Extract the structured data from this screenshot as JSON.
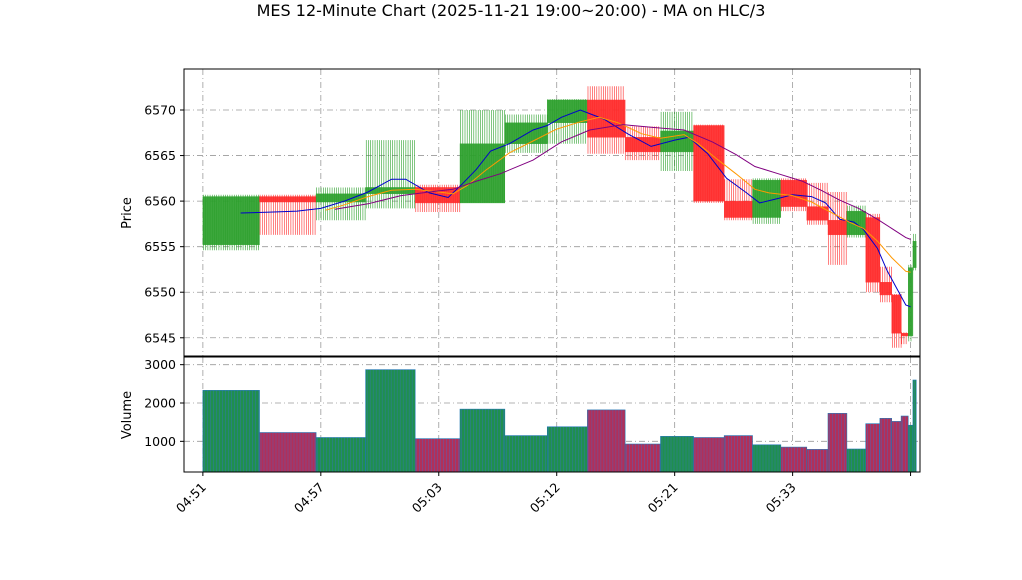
{
  "chart_data": {
    "type": "candlestick",
    "title": "MES 12-Minute Chart (2025-11-21 19:00~20:00) - MA on HLC/3",
    "price_panel": {
      "ylabel": "Price",
      "ylim": [
        6543,
        6574.5
      ],
      "yticks": [
        6545,
        6550,
        6555,
        6560,
        6565,
        6570
      ],
      "grid": true
    },
    "volume_panel": {
      "ylabel": "Volume",
      "ylim": [
        200,
        3200
      ],
      "yticks": [
        1000,
        2000,
        3000
      ],
      "grid": true
    },
    "xlim": [
      -0.4,
      15.2
    ],
    "xticks": [
      {
        "label": "04:51",
        "pos": 0
      },
      {
        "label": "04:57",
        "pos": 2.5
      },
      {
        "label": "05:03",
        "pos": 5
      },
      {
        "label": "05:12",
        "pos": 7.5
      },
      {
        "label": "05:21",
        "pos": 10
      },
      {
        "label": "05:33",
        "pos": 12.5
      },
      {
        "label": "",
        "pos": 15
      }
    ],
    "candles": [
      {
        "x0": 0.0,
        "x1": 1.2,
        "open": 6555.2,
        "high": 6560.7,
        "low": 6554.6,
        "close": 6560.5,
        "volume": 2330
      },
      {
        "x0": 1.2,
        "x1": 2.4,
        "open": 6560.5,
        "high": 6560.7,
        "low": 6556.3,
        "close": 6559.9,
        "volume": 1230
      },
      {
        "x0": 2.4,
        "x1": 3.45,
        "open": 6559.9,
        "high": 6561.5,
        "low": 6557.9,
        "close": 6560.8,
        "volume": 1100
      },
      {
        "x0": 3.45,
        "x1": 4.5,
        "open": 6560.8,
        "high": 6566.7,
        "low": 6559.2,
        "close": 6561.5,
        "volume": 2870
      },
      {
        "x0": 4.5,
        "x1": 5.45,
        "open": 6561.5,
        "high": 6561.8,
        "low": 6558.8,
        "close": 6559.8,
        "volume": 1070
      },
      {
        "x0": 5.45,
        "x1": 6.4,
        "open": 6559.8,
        "high": 6570.0,
        "low": 6559.8,
        "close": 6566.3,
        "volume": 1840
      },
      {
        "x0": 6.4,
        "x1": 7.3,
        "open": 6566.3,
        "high": 6569.5,
        "low": 6565.3,
        "close": 6568.6,
        "volume": 1150
      },
      {
        "x0": 7.3,
        "x1": 8.15,
        "open": 6568.6,
        "high": 6571.2,
        "low": 6566.3,
        "close": 6571.1,
        "volume": 1380
      },
      {
        "x0": 8.15,
        "x1": 8.95,
        "open": 6571.1,
        "high": 6572.6,
        "low": 6565.2,
        "close": 6567.0,
        "volume": 1820
      },
      {
        "x0": 8.95,
        "x1": 9.7,
        "open": 6567.0,
        "high": 6568.2,
        "low": 6564.5,
        "close": 6565.4,
        "volume": 930
      },
      {
        "x0": 9.7,
        "x1": 10.4,
        "open": 6565.4,
        "high": 6569.8,
        "low": 6563.3,
        "close": 6567.7,
        "volume": 1130
      },
      {
        "x0": 10.4,
        "x1": 11.05,
        "open": 6568.3,
        "high": 6568.4,
        "low": 6559.8,
        "close": 6560.0,
        "volume": 1100
      },
      {
        "x0": 11.05,
        "x1": 11.65,
        "open": 6560.0,
        "high": 6562.4,
        "low": 6557.9,
        "close": 6558.2,
        "volume": 1150
      },
      {
        "x0": 11.65,
        "x1": 12.25,
        "open": 6558.2,
        "high": 6562.5,
        "low": 6557.5,
        "close": 6562.3,
        "volume": 910
      },
      {
        "x0": 12.25,
        "x1": 12.8,
        "open": 6562.3,
        "high": 6562.5,
        "low": 6558.9,
        "close": 6559.4,
        "volume": 850
      },
      {
        "x0": 12.8,
        "x1": 13.25,
        "open": 6559.4,
        "high": 6562.0,
        "low": 6557.4,
        "close": 6557.9,
        "volume": 790
      },
      {
        "x0": 13.25,
        "x1": 13.65,
        "open": 6557.9,
        "high": 6561.0,
        "low": 6553.0,
        "close": 6556.3,
        "volume": 1730
      },
      {
        "x0": 13.65,
        "x1": 14.05,
        "open": 6556.3,
        "high": 6559.5,
        "low": 6556.0,
        "close": 6558.9,
        "volume": 800
      },
      {
        "x0": 14.05,
        "x1": 14.35,
        "open": 6558.2,
        "high": 6558.6,
        "low": 6550.0,
        "close": 6551.1,
        "volume": 1460
      },
      {
        "x0": 14.35,
        "x1": 14.6,
        "open": 6551.1,
        "high": 6552.8,
        "low": 6548.9,
        "close": 6549.7,
        "volume": 1600
      },
      {
        "x0": 14.6,
        "x1": 14.8,
        "open": 6549.7,
        "high": 6549.8,
        "low": 6543.9,
        "close": 6545.5,
        "volume": 1520
      },
      {
        "x0": 14.8,
        "x1": 14.95,
        "open": 6545.5,
        "high": 6545.6,
        "low": 6544.3,
        "close": 6545.2,
        "volume": 1660
      },
      {
        "x0": 14.95,
        "x1": 15.05,
        "open": 6545.2,
        "high": 6553.0,
        "low": 6544.6,
        "close": 6552.7,
        "volume": 1420
      },
      {
        "x0": 15.05,
        "x1": 15.12,
        "open": 6552.7,
        "high": 6556.4,
        "low": 6552.4,
        "close": 6555.6,
        "volume": 2600
      }
    ],
    "ma_lines": [
      {
        "color": "#0000cc",
        "points": [
          [
            0.8,
            6558.7
          ],
          [
            1.5,
            6558.8
          ],
          [
            2.0,
            6558.9
          ],
          [
            2.5,
            6559.2
          ],
          [
            3.0,
            6560.0
          ],
          [
            3.5,
            6561.0
          ],
          [
            4.0,
            6562.4
          ],
          [
            4.3,
            6562.4
          ],
          [
            4.8,
            6560.9
          ],
          [
            5.2,
            6560.4
          ],
          [
            5.5,
            6561.9
          ],
          [
            5.8,
            6563.5
          ],
          [
            6.1,
            6565.5
          ],
          [
            6.5,
            6566.3
          ],
          [
            7.0,
            6567.8
          ],
          [
            7.3,
            6568.3
          ],
          [
            7.6,
            6569.2
          ],
          [
            8.0,
            6570.0
          ],
          [
            8.5,
            6569.0
          ],
          [
            9.0,
            6567.4
          ],
          [
            9.5,
            6566.0
          ],
          [
            10.0,
            6566.7
          ],
          [
            10.3,
            6567.0
          ],
          [
            10.7,
            6565.2
          ],
          [
            11.1,
            6562.5
          ],
          [
            11.5,
            6561.0
          ],
          [
            11.8,
            6559.8
          ],
          [
            12.2,
            6560.3
          ],
          [
            12.5,
            6560.7
          ],
          [
            12.9,
            6560.5
          ],
          [
            13.2,
            6559.8
          ],
          [
            13.5,
            6558.0
          ],
          [
            13.8,
            6557.7
          ],
          [
            14.0,
            6556.9
          ],
          [
            14.3,
            6554.8
          ],
          [
            14.5,
            6552.4
          ],
          [
            14.7,
            6550.5
          ],
          [
            14.9,
            6548.6
          ],
          [
            15.0,
            6548.4
          ]
        ]
      },
      {
        "color": "#ff9900",
        "points": [
          [
            2.6,
            6559.0
          ],
          [
            3.0,
            6559.6
          ],
          [
            3.5,
            6560.5
          ],
          [
            4.0,
            6561.2
          ],
          [
            4.5,
            6561.3
          ],
          [
            5.0,
            6561.0
          ],
          [
            5.3,
            6560.8
          ],
          [
            5.6,
            6561.7
          ],
          [
            6.0,
            6563.4
          ],
          [
            6.5,
            6565.3
          ],
          [
            7.0,
            6566.6
          ],
          [
            7.5,
            6567.9
          ],
          [
            8.0,
            6568.7
          ],
          [
            8.4,
            6569.2
          ],
          [
            8.8,
            6568.6
          ],
          [
            9.3,
            6567.4
          ],
          [
            9.7,
            6566.9
          ],
          [
            10.2,
            6567.3
          ],
          [
            10.5,
            6566.3
          ],
          [
            10.9,
            6564.6
          ],
          [
            11.3,
            6563.0
          ],
          [
            11.7,
            6561.3
          ],
          [
            12.0,
            6560.9
          ],
          [
            12.5,
            6560.6
          ],
          [
            12.9,
            6559.9
          ],
          [
            13.3,
            6558.8
          ],
          [
            13.7,
            6557.7
          ],
          [
            14.0,
            6557.0
          ],
          [
            14.3,
            6555.6
          ],
          [
            14.6,
            6553.8
          ],
          [
            14.9,
            6552.3
          ],
          [
            15.0,
            6552.2
          ]
        ]
      },
      {
        "color": "#800080",
        "points": [
          [
            2.8,
            6559.1
          ],
          [
            3.5,
            6559.7
          ],
          [
            4.2,
            6560.6
          ],
          [
            4.8,
            6561.0
          ],
          [
            5.3,
            6561.3
          ],
          [
            5.8,
            6562.2
          ],
          [
            6.3,
            6563.0
          ],
          [
            7.0,
            6564.5
          ],
          [
            7.6,
            6566.5
          ],
          [
            8.2,
            6567.8
          ],
          [
            8.9,
            6568.4
          ],
          [
            9.5,
            6568.1
          ],
          [
            10.2,
            6567.8
          ],
          [
            10.8,
            6566.5
          ],
          [
            11.3,
            6565.1
          ],
          [
            11.7,
            6563.8
          ],
          [
            12.2,
            6563.0
          ],
          [
            12.7,
            6562.2
          ],
          [
            13.1,
            6561.2
          ],
          [
            13.5,
            6560.1
          ],
          [
            13.9,
            6559.2
          ],
          [
            14.3,
            6558.0
          ],
          [
            14.6,
            6557.0
          ],
          [
            14.9,
            6556.0
          ],
          [
            15.0,
            6555.8
          ]
        ]
      }
    ]
  }
}
